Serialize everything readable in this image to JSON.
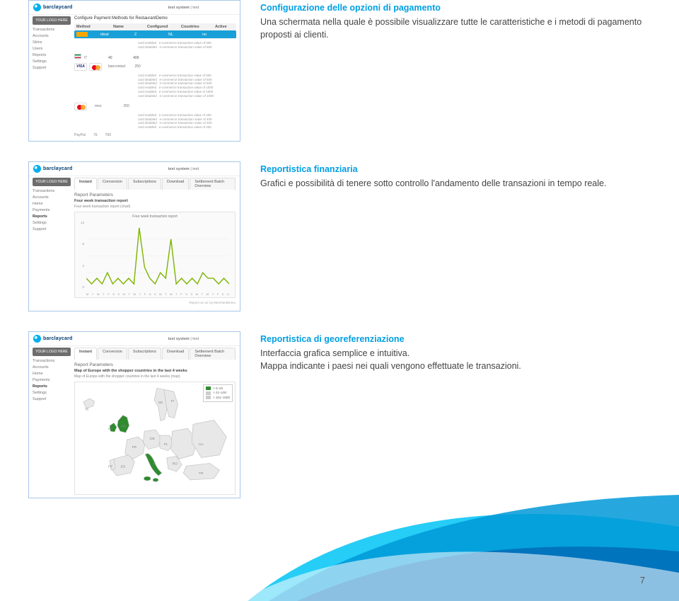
{
  "sections": [
    {
      "title": "Configurazione delle opzioni di pagamento",
      "body": "Una schermata nella quale è possibile visualizzare tutte le caratteristiche e i metodi di pagamento proposti ai clienti."
    },
    {
      "title": "Reportistica finanziaria",
      "body": "Grafici e possibilità di tenere sotto controllo l'andamento delle transazioni in tempo reale."
    },
    {
      "title": "Reportistica di georeferenziazione",
      "body": "Interfaccia grafica semplice e intuitiva.",
      "body2": "Mappa indicante i paesi nei quali vengono effettuate le transazioni."
    }
  ],
  "brand": {
    "name": "barclaycard",
    "env": "test system",
    "env_sub": "| test"
  },
  "badge": "YOUR LOGO HERE",
  "thumb1": {
    "title": "Configure Payment Methods for RestaurantDemo",
    "headers": [
      "Method",
      "Name",
      "Configured",
      "Countries",
      "Active"
    ],
    "left": [
      "Transactions",
      "Accounts",
      "Skins",
      "Users",
      "Reports",
      "Settings",
      "Support"
    ],
    "rows": [
      {
        "m": "ideal",
        "n": "iDEAL",
        "c": "2",
        "co": "NL",
        "a": "no",
        "lines": [
          "card enabled  e-commerce transaction value of 500",
          "card disabled  e-commerce transaction value of 500"
        ]
      }
    ]
  },
  "thumb2": {
    "tabs": [
      "Instant",
      "Conversion",
      "Subscriptions",
      "Download",
      "Settlement Batch Overview"
    ],
    "left": [
      "Transactions",
      "Accounts",
      "Home",
      "Payments",
      "Reports",
      "Settings",
      "Support"
    ],
    "rp": "Report Parameters",
    "rp2": "Four week transaction report",
    "rp3": "Four week transaction report (chart)",
    "chart_title": "Four week transaction report",
    "series": {
      "points": [
        2,
        1,
        2,
        1,
        3,
        1,
        2,
        1,
        2,
        1,
        11,
        4,
        2,
        1,
        3,
        2,
        9,
        1,
        2,
        1,
        2,
        1,
        3,
        2,
        2,
        1,
        2,
        1
      ],
      "color": "#7db500",
      "ymax": 12
    },
    "footer": "Report run at:      by MerchantDemo"
  },
  "thumb3": {
    "tabs": [
      "Instant",
      "Conversion",
      "Subscriptions",
      "Download",
      "Settlement Batch Overview"
    ],
    "left": [
      "Transactions",
      "Accounts",
      "Home",
      "Payments",
      "Reports",
      "Settings",
      "Support"
    ],
    "rp": "Report Parameters",
    "rp2": "Map of Europe with the shopper countries in the last 4 weeks",
    "rp3": "Map of Europe with the shopper countries in the last 4 weeks (map)",
    "legend": [
      {
        "c": "#2e8b2e",
        "t": "> 0–20"
      },
      {
        "c": "#cccccc",
        "t": "> 21–100"
      },
      {
        "c": "#cccccc",
        "t": "> 101–1000"
      }
    ],
    "map_labels": [
      "IS",
      "SE",
      "FI",
      "NO",
      "GB",
      "IE",
      "FR",
      "DE",
      "ES",
      "PT",
      "IT",
      "PL",
      "UA",
      "TR",
      "RO",
      "GR"
    ]
  },
  "page_number": "7",
  "colors": {
    "accent": "#009fe3",
    "wave1": "#0099d8",
    "wave2": "#00c4f5",
    "wave3": "#0066b3"
  }
}
